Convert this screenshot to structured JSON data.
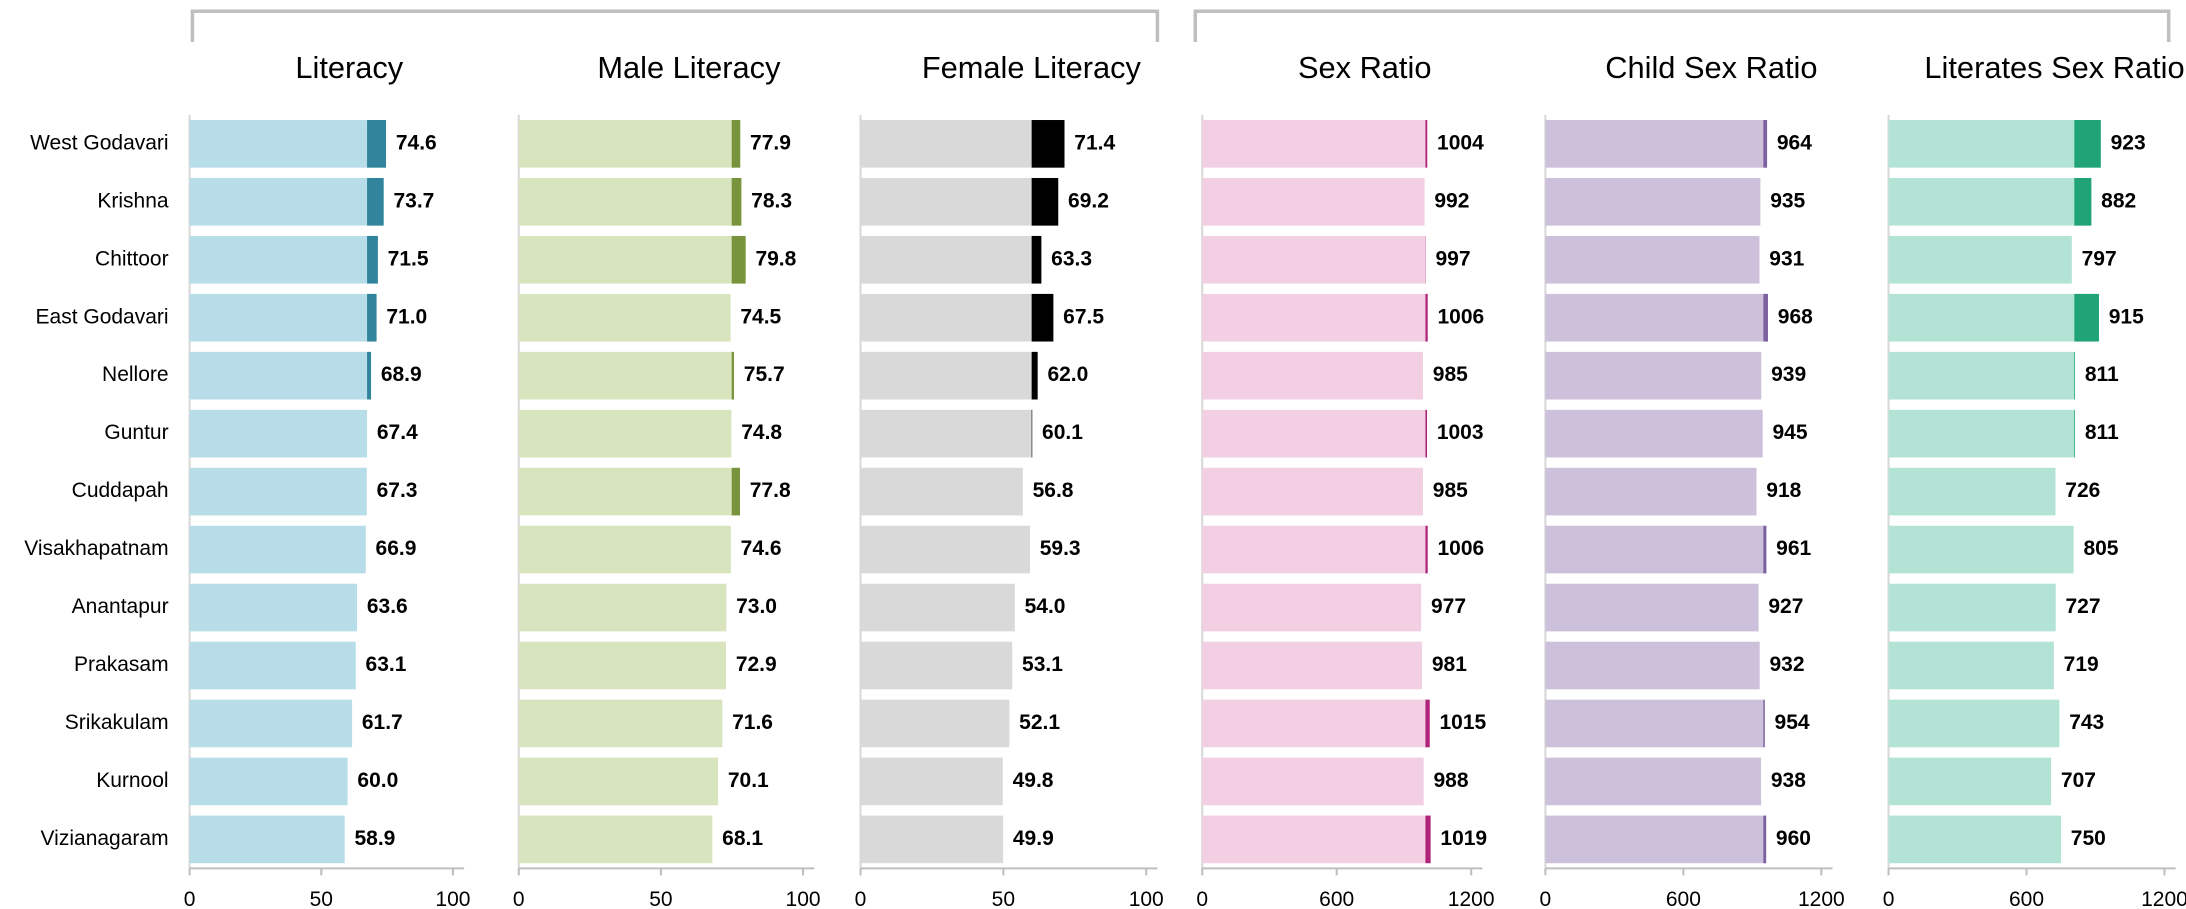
{
  "chart_data": [
    {
      "type": "bar",
      "orientation": "horizontal",
      "title": "Literacy",
      "categories": [
        "West Godavari",
        "Krishna",
        "Chittoor",
        "East Godavari",
        "Nellore",
        "Guntur",
        "Cuddapah",
        "Visakhapatnam",
        "Anantapur",
        "Prakasam",
        "Srikakulam",
        "Kurnool",
        "Vizianagaram"
      ],
      "values": [
        74.6,
        73.7,
        71.5,
        71.0,
        68.9,
        67.4,
        67.3,
        66.9,
        63.6,
        63.1,
        61.7,
        60.0,
        58.9
      ],
      "value_labels": [
        "74.6",
        "73.7",
        "71.5",
        "71.0",
        "68.9",
        "67.4",
        "67.3",
        "66.9",
        "63.6",
        "63.1",
        "61.7",
        "60.0",
        "58.9"
      ],
      "xlim": [
        0,
        100
      ],
      "xticks": [
        0,
        50,
        100
      ],
      "color": "#b7dde8",
      "highlight_color": "#31849b",
      "highlight_from": 67.4
    },
    {
      "type": "bar",
      "orientation": "horizontal",
      "title": "Male Literacy",
      "values": [
        77.9,
        78.3,
        79.8,
        74.5,
        75.7,
        74.8,
        77.8,
        74.6,
        73.0,
        72.9,
        71.6,
        70.1,
        68.1
      ],
      "value_labels": [
        "77.9",
        "78.3",
        "79.8",
        "74.5",
        "75.7",
        "74.8",
        "77.8",
        "74.6",
        "73.0",
        "72.9",
        "71.6",
        "70.1",
        "68.1"
      ],
      "xlim": [
        0,
        100
      ],
      "xticks": [
        0,
        50,
        100
      ],
      "color": "#d7e4bd",
      "highlight_color": "#77933c",
      "highlight_from": 74.9
    },
    {
      "type": "bar",
      "orientation": "horizontal",
      "title": "Female Literacy",
      "values": [
        71.4,
        69.2,
        63.3,
        67.5,
        62.0,
        60.1,
        56.8,
        59.3,
        54.0,
        53.1,
        52.1,
        49.8,
        49.9
      ],
      "value_labels": [
        "71.4",
        "69.2",
        "63.3",
        "67.5",
        "62.0",
        "60.1",
        "56.8",
        "59.3",
        "54.0",
        "53.1",
        "52.1",
        "49.8",
        "49.9"
      ],
      "xlim": [
        0,
        100
      ],
      "xticks": [
        0,
        50,
        100
      ],
      "color": "#d9d9d9",
      "highlight_color": "#000000",
      "highlight_from": 59.9
    },
    {
      "type": "bar",
      "orientation": "horizontal",
      "title": "Sex Ratio",
      "values": [
        1004,
        992,
        997,
        1006,
        985,
        1003,
        985,
        1006,
        977,
        981,
        1015,
        988,
        1019
      ],
      "xlim": [
        0,
        1200
      ],
      "xticks": [
        0,
        600,
        1200
      ],
      "color": "#f2cfe2",
      "highlight_color": "#b0237a",
      "highlight_from": 996
    },
    {
      "type": "bar",
      "orientation": "horizontal",
      "title": "Child Sex Ratio",
      "values": [
        964,
        935,
        931,
        968,
        939,
        945,
        918,
        961,
        927,
        932,
        954,
        938,
        960
      ],
      "xlim": [
        0,
        1200
      ],
      "xticks": [
        0,
        600,
        1200
      ],
      "color": "#ccc0da",
      "highlight_color": "#7d60a0",
      "highlight_from": 948
    },
    {
      "type": "bar",
      "orientation": "horizontal",
      "title": "Literates Sex Ratio",
      "values": [
        923,
        882,
        797,
        915,
        811,
        811,
        726,
        805,
        727,
        719,
        743,
        707,
        750
      ],
      "xlim": [
        0,
        1200
      ],
      "xticks": [
        0,
        600,
        1200
      ],
      "color": "#b3e3d4",
      "highlight_color": "#1fa377",
      "highlight_from": 808
    }
  ]
}
